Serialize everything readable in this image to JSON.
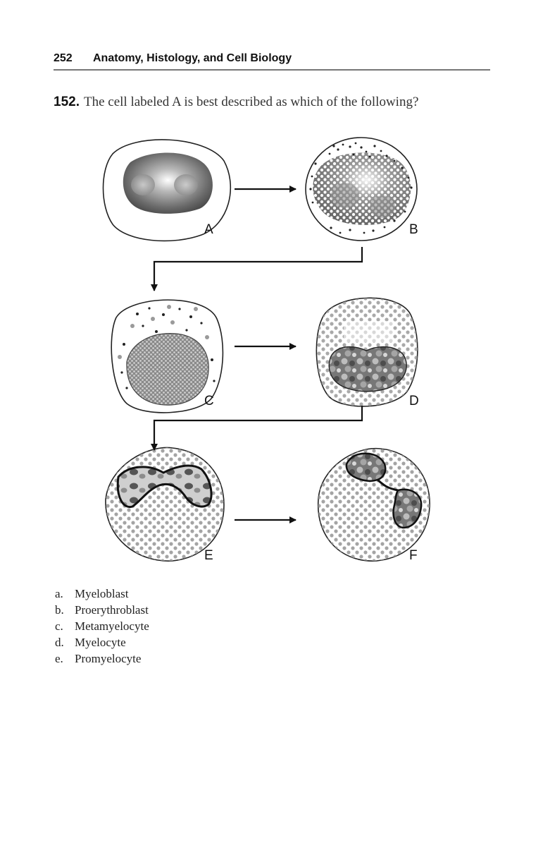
{
  "running_head": {
    "page_number": "252",
    "title": "Anatomy, Histology, and Cell Biology"
  },
  "question": {
    "number": "152.",
    "text": "The cell labeled A is best described as which of the following?"
  },
  "figure": {
    "cell_labels": {
      "a": "A",
      "b": "B",
      "c": "C",
      "d": "D",
      "e": "E",
      "f": "F"
    }
  },
  "options": [
    {
      "letter": "a.",
      "text": "Myeloblast"
    },
    {
      "letter": "b.",
      "text": "Proerythroblast"
    },
    {
      "letter": "c.",
      "text": "Metamyelocyte"
    },
    {
      "letter": "d.",
      "text": "Myelocyte"
    },
    {
      "letter": "e.",
      "text": "Promyelocyte"
    }
  ]
}
